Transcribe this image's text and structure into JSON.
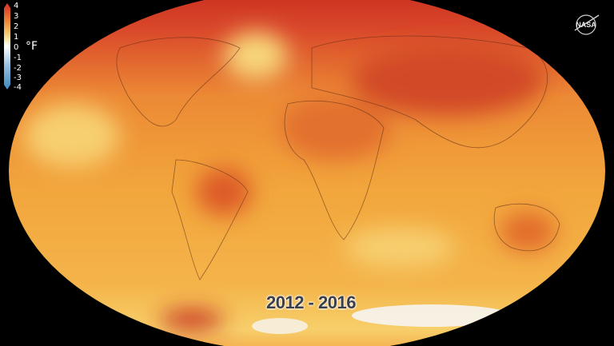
{
  "title": "2012 - 2016",
  "legend": {
    "unit": "°F",
    "ticks": [
      "4",
      "3",
      "2",
      "1",
      "0",
      "-1",
      "-2",
      "-3",
      "-4"
    ],
    "colors": {
      "max": "#d9432a",
      "mid": "#ffffff",
      "min": "#4c93c8"
    }
  },
  "logo": "NASA",
  "map_colors": {
    "base": "#f2a33a",
    "warm": "#e0622a",
    "hot": "#c82b1e",
    "cool": "#f8dd7a",
    "ice": "#f4f4f8"
  }
}
